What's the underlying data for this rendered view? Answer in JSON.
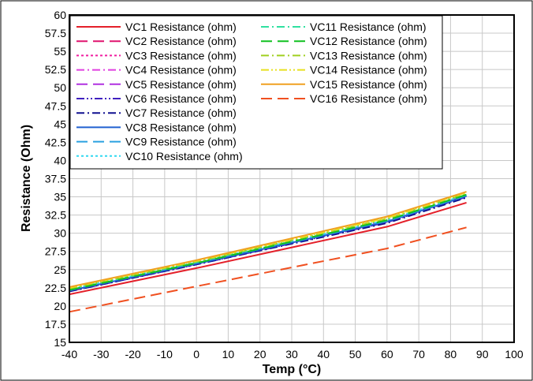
{
  "chart_data": {
    "type": "line",
    "title": "",
    "xlabel": "Temp (°C)",
    "ylabel": "Resistance (Ohm)",
    "xlim": [
      -40,
      100
    ],
    "ylim": [
      15,
      60
    ],
    "xticks": [
      -40,
      -30,
      -20,
      -10,
      0,
      10,
      20,
      30,
      40,
      50,
      60,
      70,
      80,
      90,
      100
    ],
    "xtick_labels": [
      "-40",
      "-30",
      "-20",
      "-10",
      "0",
      "10",
      "20",
      "30",
      "40",
      "50",
      "60",
      "70",
      "80",
      "90",
      "100"
    ],
    "yticks": [
      15,
      17.5,
      20,
      22.5,
      25,
      27.5,
      30,
      32.5,
      35,
      37.5,
      40,
      42.5,
      45,
      47.5,
      50,
      52.5,
      55,
      57.5,
      60
    ],
    "ytick_labels": [
      "15",
      "17.5",
      "20",
      "22.5",
      "25",
      "27.5",
      "30",
      "32.5",
      "35",
      "37.5",
      "40",
      "42.5",
      "45",
      "47.5",
      "50",
      "52.5",
      "55",
      "57.5",
      "60"
    ],
    "grid": true,
    "legend_position": "top-left",
    "x": [
      -40,
      0,
      60,
      85
    ],
    "series": [
      {
        "name": "VC1 Resistance (ohm)",
        "color": "#e4202a",
        "dash": "solid",
        "values": [
          21.6,
          25.2,
          30.9,
          34.2
        ]
      },
      {
        "name": "VC2 Resistance (ohm)",
        "color": "#e0136f",
        "dash": "long-dash",
        "values": [
          22.0,
          25.8,
          31.6,
          35.1
        ]
      },
      {
        "name": "VC3 Resistance (ohm)",
        "color": "#f01ea0",
        "dash": "dot",
        "values": [
          22.1,
          25.9,
          31.7,
          35.2
        ]
      },
      {
        "name": "VC4 Resistance (ohm)",
        "color": "#e040e0",
        "dash": "dash-dot",
        "values": [
          22.2,
          25.9,
          31.8,
          35.3
        ]
      },
      {
        "name": "VC5 Resistance (ohm)",
        "color": "#b030e0",
        "dash": "long-dash",
        "values": [
          22.1,
          25.8,
          31.6,
          35.1
        ]
      },
      {
        "name": "VC6 Resistance (ohm)",
        "color": "#4020c0",
        "dash": "dash-dot-dot",
        "values": [
          22.0,
          25.7,
          31.5,
          35.0
        ]
      },
      {
        "name": "VC7 Resistance (ohm)",
        "color": "#101090",
        "dash": "dash-dot",
        "values": [
          22.0,
          25.7,
          31.4,
          34.9
        ]
      },
      {
        "name": "VC8 Resistance (ohm)",
        "color": "#2060d0",
        "dash": "solid",
        "values": [
          22.1,
          25.8,
          31.6,
          35.1
        ]
      },
      {
        "name": "VC9 Resistance (ohm)",
        "color": "#2aa0e0",
        "dash": "long-dash",
        "values": [
          22.2,
          25.9,
          31.7,
          35.2
        ]
      },
      {
        "name": "VC10 Resistance (ohm)",
        "color": "#30d8f0",
        "dash": "dot",
        "values": [
          22.3,
          26.0,
          31.8,
          35.3
        ]
      },
      {
        "name": "VC11 Resistance (ohm)",
        "color": "#30e0a0",
        "dash": "dash-dot",
        "values": [
          22.3,
          26.0,
          31.9,
          35.4
        ]
      },
      {
        "name": "VC12 Resistance (ohm)",
        "color": "#10c020",
        "dash": "long-dash",
        "values": [
          22.2,
          25.9,
          31.8,
          35.3
        ]
      },
      {
        "name": "VC13 Resistance (ohm)",
        "color": "#a0d020",
        "dash": "dash-dot",
        "values": [
          22.4,
          26.1,
          32.0,
          35.5
        ]
      },
      {
        "name": "VC14 Resistance (ohm)",
        "color": "#e8e020",
        "dash": "dash-dot-dot",
        "values": [
          22.5,
          26.2,
          32.1,
          35.6
        ]
      },
      {
        "name": "VC15 Resistance (ohm)",
        "color": "#f0a020",
        "dash": "solid",
        "values": [
          22.6,
          26.3,
          32.3,
          35.7
        ]
      },
      {
        "name": "VC16 Resistance (ohm)",
        "color": "#f05020",
        "dash": "long-dash",
        "values": [
          19.2,
          22.7,
          27.9,
          30.8
        ]
      }
    ]
  }
}
